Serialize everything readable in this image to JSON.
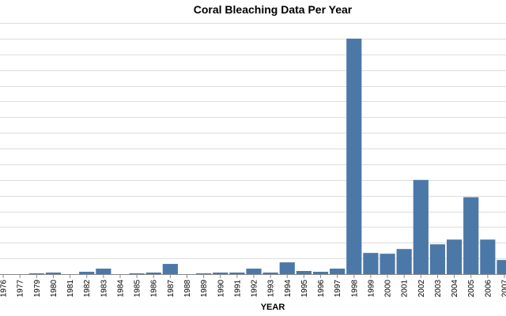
{
  "chart_data": {
    "type": "bar",
    "title": "Coral Bleaching Data Per Year",
    "xlabel": "YEAR",
    "ylabel": "",
    "grid": true,
    "bar_color": "#4c78a8",
    "categories": [
      "1976",
      "1977",
      "1979",
      "1980",
      "1981",
      "1982",
      "1983",
      "1984",
      "1985",
      "1986",
      "1987",
      "1988",
      "1989",
      "1990",
      "1991",
      "1992",
      "1993",
      "1994",
      "1995",
      "1996",
      "1997",
      "1998",
      "1999",
      "2000",
      "2001",
      "2002",
      "2003",
      "2004",
      "2005",
      "2006",
      "2007"
    ],
    "values": [
      0,
      0,
      1,
      2,
      0,
      3,
      7,
      0,
      1,
      2,
      13,
      0,
      1,
      2,
      2,
      7,
      2,
      15,
      4,
      3,
      7,
      300,
      27,
      26,
      32,
      120,
      38,
      44,
      98,
      44,
      18
    ],
    "ylim": [
      0,
      320
    ]
  }
}
